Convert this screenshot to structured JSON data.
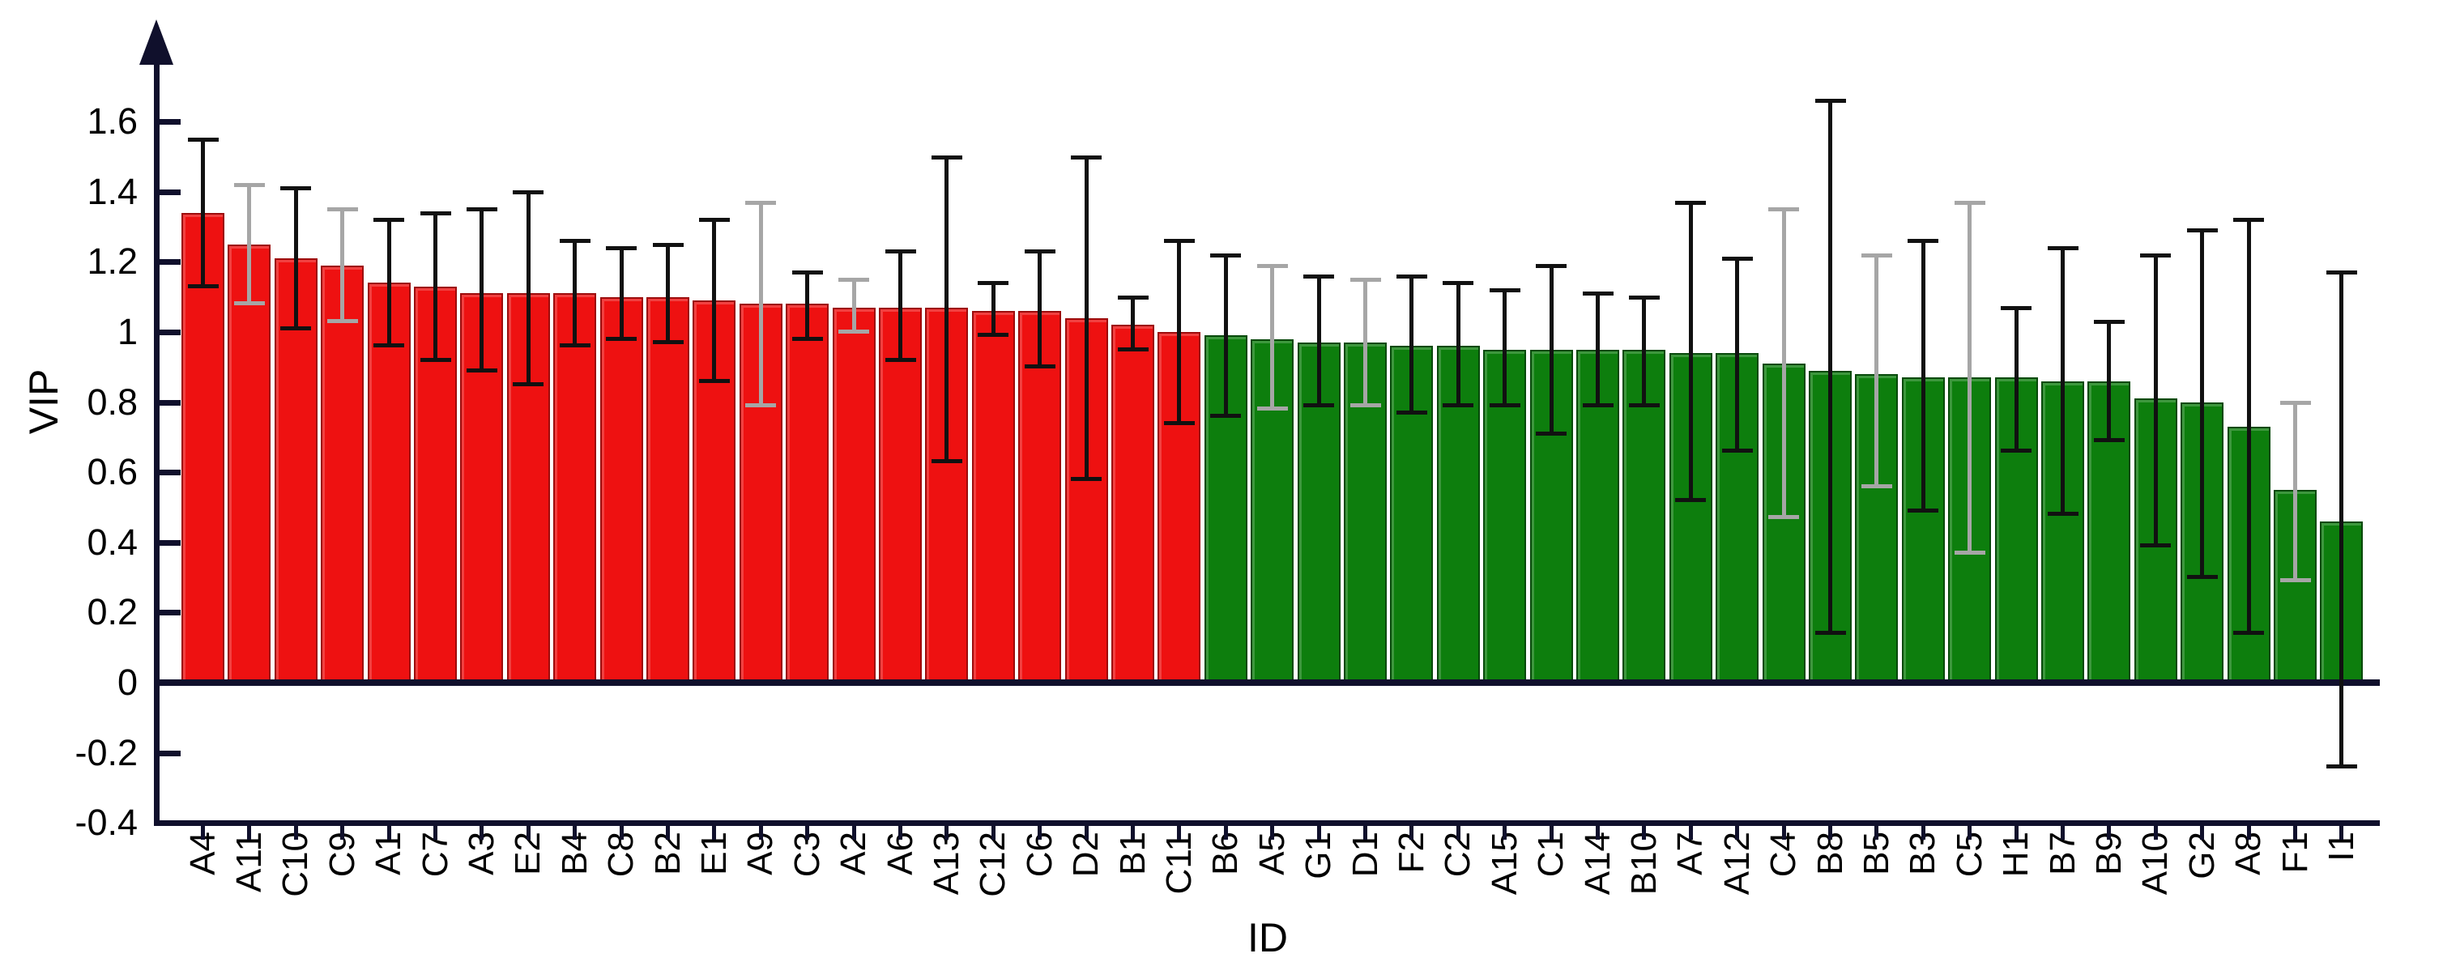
{
  "axes": {
    "ylabel": "VIP",
    "xlabel": "ID",
    "yticks": [
      "1.6",
      "1.4",
      "1.2",
      "1",
      "0.8",
      "0.6",
      "0.4",
      "0.2",
      "0",
      "-0.2",
      "-0.4"
    ]
  },
  "colors": {
    "high_bar_fill": "#ee1111",
    "high_bar_border": "#9d0b0b",
    "low_bar_fill": "#0d7e0d",
    "low_bar_border": "#07490a",
    "axis": "#10102c",
    "error_black": "#111111",
    "error_gray": "#a6a6a6",
    "text": "#000000"
  },
  "chart_data": {
    "type": "bar",
    "title": "",
    "xlabel": "ID",
    "ylabel": "VIP",
    "ylim": [
      -0.4,
      1.75
    ],
    "ytick_values": [
      1.6,
      1.4,
      1.2,
      1.0,
      0.8,
      0.6,
      0.4,
      0.2,
      0.0,
      -0.2,
      -0.4
    ],
    "grid": false,
    "legend": "none",
    "note": "Bars with VIP >= 1 are red (important), VIP < 1 are green. Error bars = lo/hi whisker values; gray=true means the whisker is drawn light gray.",
    "bars": [
      {
        "id": "A4",
        "value": 1.34,
        "lo": 1.13,
        "hi": 1.55,
        "group": "high",
        "gray": false
      },
      {
        "id": "A11",
        "value": 1.25,
        "lo": 1.08,
        "hi": 1.42,
        "group": "high",
        "gray": true
      },
      {
        "id": "C10",
        "value": 1.21,
        "lo": 1.01,
        "hi": 1.41,
        "group": "high",
        "gray": false
      },
      {
        "id": "C9",
        "value": 1.19,
        "lo": 1.03,
        "hi": 1.35,
        "group": "high",
        "gray": true
      },
      {
        "id": "A1",
        "value": 1.14,
        "lo": 0.96,
        "hi": 1.32,
        "group": "high",
        "gray": false
      },
      {
        "id": "C7",
        "value": 1.13,
        "lo": 0.92,
        "hi": 1.34,
        "group": "high",
        "gray": false
      },
      {
        "id": "A3",
        "value": 1.11,
        "lo": 0.89,
        "hi": 1.35,
        "group": "high",
        "gray": false
      },
      {
        "id": "E2",
        "value": 1.11,
        "lo": 0.85,
        "hi": 1.4,
        "group": "high",
        "gray": false
      },
      {
        "id": "B4",
        "value": 1.11,
        "lo": 0.96,
        "hi": 1.26,
        "group": "high",
        "gray": false
      },
      {
        "id": "C8",
        "value": 1.1,
        "lo": 0.98,
        "hi": 1.24,
        "group": "high",
        "gray": false
      },
      {
        "id": "B2",
        "value": 1.1,
        "lo": 0.97,
        "hi": 1.25,
        "group": "high",
        "gray": false
      },
      {
        "id": "E1",
        "value": 1.09,
        "lo": 0.86,
        "hi": 1.32,
        "group": "high",
        "gray": false
      },
      {
        "id": "A9",
        "value": 1.08,
        "lo": 0.79,
        "hi": 1.37,
        "group": "high",
        "gray": true
      },
      {
        "id": "C3",
        "value": 1.08,
        "lo": 0.98,
        "hi": 1.17,
        "group": "high",
        "gray": false
      },
      {
        "id": "A2",
        "value": 1.07,
        "lo": 1.0,
        "hi": 1.15,
        "group": "high",
        "gray": true
      },
      {
        "id": "A6",
        "value": 1.07,
        "lo": 0.92,
        "hi": 1.23,
        "group": "high",
        "gray": false
      },
      {
        "id": "A13",
        "value": 1.07,
        "lo": 0.63,
        "hi": 1.5,
        "group": "high",
        "gray": false
      },
      {
        "id": "C12",
        "value": 1.06,
        "lo": 0.99,
        "hi": 1.14,
        "group": "high",
        "gray": false
      },
      {
        "id": "C6",
        "value": 1.06,
        "lo": 0.9,
        "hi": 1.23,
        "group": "high",
        "gray": false
      },
      {
        "id": "D2",
        "value": 1.04,
        "lo": 0.58,
        "hi": 1.5,
        "group": "high",
        "gray": false
      },
      {
        "id": "B1",
        "value": 1.02,
        "lo": 0.95,
        "hi": 1.1,
        "group": "high",
        "gray": false
      },
      {
        "id": "C11",
        "value": 1.0,
        "lo": 0.74,
        "hi": 1.26,
        "group": "high",
        "gray": false
      },
      {
        "id": "B6",
        "value": 0.99,
        "lo": 0.76,
        "hi": 1.22,
        "group": "low",
        "gray": false
      },
      {
        "id": "A5",
        "value": 0.98,
        "lo": 0.78,
        "hi": 1.19,
        "group": "low",
        "gray": true
      },
      {
        "id": "G1",
        "value": 0.97,
        "lo": 0.79,
        "hi": 1.16,
        "group": "low",
        "gray": false
      },
      {
        "id": "D1",
        "value": 0.97,
        "lo": 0.79,
        "hi": 1.15,
        "group": "low",
        "gray": true
      },
      {
        "id": "F2",
        "value": 0.96,
        "lo": 0.77,
        "hi": 1.16,
        "group": "low",
        "gray": false
      },
      {
        "id": "C2",
        "value": 0.96,
        "lo": 0.79,
        "hi": 1.14,
        "group": "low",
        "gray": false
      },
      {
        "id": "A15",
        "value": 0.95,
        "lo": 0.79,
        "hi": 1.12,
        "group": "low",
        "gray": false
      },
      {
        "id": "C1",
        "value": 0.95,
        "lo": 0.71,
        "hi": 1.19,
        "group": "low",
        "gray": false
      },
      {
        "id": "A14",
        "value": 0.95,
        "lo": 0.79,
        "hi": 1.11,
        "group": "low",
        "gray": false
      },
      {
        "id": "B10",
        "value": 0.95,
        "lo": 0.79,
        "hi": 1.1,
        "group": "low",
        "gray": false
      },
      {
        "id": "A7",
        "value": 0.94,
        "lo": 0.52,
        "hi": 1.37,
        "group": "low",
        "gray": false
      },
      {
        "id": "A12",
        "value": 0.94,
        "lo": 0.66,
        "hi": 1.21,
        "group": "low",
        "gray": false
      },
      {
        "id": "C4",
        "value": 0.91,
        "lo": 0.47,
        "hi": 1.35,
        "group": "low",
        "gray": true
      },
      {
        "id": "B8",
        "value": 0.89,
        "lo": 0.14,
        "hi": 1.66,
        "group": "low",
        "gray": false
      },
      {
        "id": "B5",
        "value": 0.88,
        "lo": 0.56,
        "hi": 1.22,
        "group": "low",
        "gray": true
      },
      {
        "id": "B3",
        "value": 0.87,
        "lo": 0.49,
        "hi": 1.26,
        "group": "low",
        "gray": false
      },
      {
        "id": "C5",
        "value": 0.87,
        "lo": 0.37,
        "hi": 1.37,
        "group": "low",
        "gray": true
      },
      {
        "id": "H1",
        "value": 0.87,
        "lo": 0.66,
        "hi": 1.07,
        "group": "low",
        "gray": false
      },
      {
        "id": "B7",
        "value": 0.86,
        "lo": 0.48,
        "hi": 1.24,
        "group": "low",
        "gray": false
      },
      {
        "id": "B9",
        "value": 0.86,
        "lo": 0.69,
        "hi": 1.03,
        "group": "low",
        "gray": false
      },
      {
        "id": "A10",
        "value": 0.81,
        "lo": 0.39,
        "hi": 1.22,
        "group": "low",
        "gray": false
      },
      {
        "id": "G2",
        "value": 0.8,
        "lo": 0.3,
        "hi": 1.29,
        "group": "low",
        "gray": false
      },
      {
        "id": "A8",
        "value": 0.73,
        "lo": 0.14,
        "hi": 1.32,
        "group": "low",
        "gray": false
      },
      {
        "id": "F1",
        "value": 0.55,
        "lo": 0.29,
        "hi": 0.8,
        "group": "low",
        "gray": true
      },
      {
        "id": "I1",
        "value": 0.46,
        "lo": -0.24,
        "hi": 1.17,
        "group": "low",
        "gray": false
      }
    ]
  }
}
